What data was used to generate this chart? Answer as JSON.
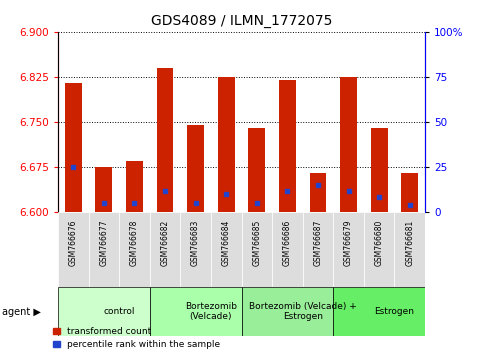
{
  "title": "GDS4089 / ILMN_1772075",
  "samples": [
    "GSM766676",
    "GSM766677",
    "GSM766678",
    "GSM766682",
    "GSM766683",
    "GSM766684",
    "GSM766685",
    "GSM766686",
    "GSM766687",
    "GSM766679",
    "GSM766680",
    "GSM766681"
  ],
  "bar_tops": [
    6.815,
    6.675,
    6.685,
    6.84,
    6.745,
    6.825,
    6.74,
    6.82,
    6.665,
    6.825,
    6.74,
    6.665
  ],
  "bar_bottoms": [
    6.6,
    6.6,
    6.6,
    6.6,
    6.6,
    6.6,
    6.6,
    6.6,
    6.6,
    6.6,
    6.6,
    6.6
  ],
  "blue_marks": [
    6.675,
    6.615,
    6.615,
    6.635,
    6.615,
    6.63,
    6.615,
    6.635,
    6.645,
    6.635,
    6.625,
    6.612
  ],
  "groups": [
    {
      "label": "control",
      "start": 0,
      "end": 3,
      "color": "#ccffcc"
    },
    {
      "label": "Bortezomib\n(Velcade)",
      "start": 3,
      "end": 6,
      "color": "#aaffaa"
    },
    {
      "label": "Bortezomib (Velcade) +\nEstrogen",
      "start": 6,
      "end": 9,
      "color": "#99ee99"
    },
    {
      "label": "Estrogen",
      "start": 9,
      "end": 12,
      "color": "#66ee66"
    }
  ],
  "ylim_left": [
    6.6,
    6.9
  ],
  "ylim_right": [
    0,
    100
  ],
  "yticks_left": [
    6.6,
    6.675,
    6.75,
    6.825,
    6.9
  ],
  "yticks_right": [
    0,
    25,
    50,
    75,
    100
  ],
  "bar_color": "#cc2200",
  "blue_color": "#2244cc",
  "grid_color": "#888888",
  "legend_labels": [
    "transformed count",
    "percentile rank within the sample"
  ],
  "figsize": [
    4.83,
    3.54
  ],
  "dpi": 100
}
